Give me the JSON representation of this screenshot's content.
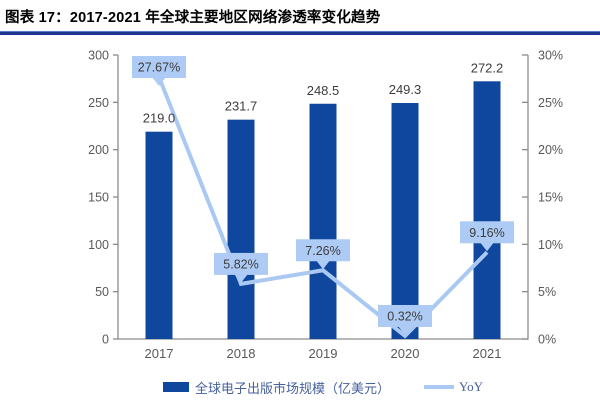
{
  "title": "图表 17：2017-2021 年全球主要地区网络渗透率变化趋势",
  "colors": {
    "bar": "#10479E",
    "line": "#A9C9F2",
    "callout_bg": "#ADCBF4",
    "callout_text": "#3D3D3D",
    "value_text": "#3D3D3D",
    "axis_text": "#595959",
    "axis_line": "#8C8C8C",
    "title_text": "#000000",
    "legend_text": "#47619C"
  },
  "chart_data": {
    "type": "bar",
    "categories": [
      "2017",
      "2018",
      "2019",
      "2020",
      "2021"
    ],
    "series": [
      {
        "name": "全球电子出版市场规模（亿美元）",
        "type": "bar",
        "axis": "left",
        "values": [
          219.0,
          231.7,
          248.5,
          249.3,
          272.2
        ],
        "labels": [
          "219.0",
          "231.7",
          "248.5",
          "249.3",
          "272.2"
        ]
      },
      {
        "name": "YoY",
        "type": "line",
        "axis": "right",
        "values": [
          27.67,
          5.82,
          7.26,
          0.32,
          9.16
        ],
        "labels": [
          "27.67%",
          "5.82%",
          "7.26%",
          "0.32%",
          "9.16%"
        ]
      }
    ],
    "left_axis": {
      "min": 0,
      "max": 300,
      "tick_labels": [
        "300",
        "250",
        "200",
        "150",
        "100",
        "50",
        "0"
      ]
    },
    "right_axis": {
      "min": 0,
      "max": 30,
      "tick_labels": [
        "30%",
        "25%",
        "20%",
        "15%",
        "10%",
        "5%",
        "0%"
      ]
    },
    "legend_position": "bottom",
    "grid": false
  },
  "legend": {
    "bar_label": "全球电子出版市场规模（亿美元）",
    "line_label": "YoY"
  }
}
